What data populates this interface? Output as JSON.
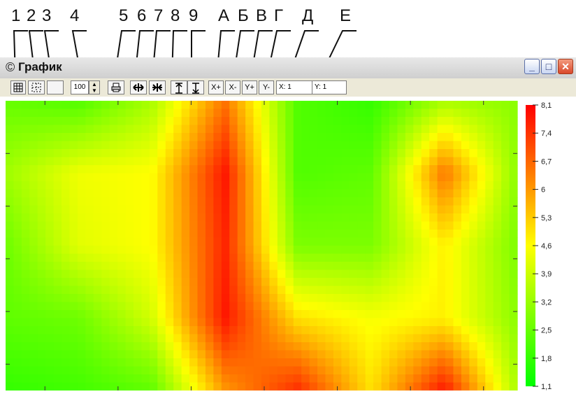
{
  "callouts": [
    "1",
    "2",
    "3",
    "4",
    "5",
    "6",
    "7",
    "8",
    "9",
    "А",
    "Б",
    "В",
    "Г",
    "Д",
    "Е"
  ],
  "window": {
    "title": "График",
    "icon": "copyright-icon",
    "controls": {
      "minimize": "_",
      "maximize": "□",
      "close": "✕"
    }
  },
  "toolbar": {
    "buttons": [
      {
        "id": "grid",
        "icon": "grid-icon"
      },
      {
        "id": "dotted-grid",
        "icon": "dotted-grid-icon"
      },
      {
        "id": "blank",
        "icon": "blank-button-icon"
      },
      {
        "id": "print",
        "icon": "printer-icon"
      },
      {
        "id": "stretch-horizontal",
        "icon": "horizontal-arrows-icon"
      },
      {
        "id": "compress-horizontal",
        "icon": "horizontal-compress-icon"
      },
      {
        "id": "stretch-vertical",
        "icon": "vertical-arrows-up-icon"
      },
      {
        "id": "compress-vertical",
        "icon": "vertical-arrows-down-icon"
      }
    ],
    "zoom_value": "100",
    "x_plus": "X+",
    "x_minus": "X-",
    "y_plus": "Y+",
    "y_minus": "Y-",
    "x_field": "X: 1",
    "y_field": "Y: 1"
  },
  "colors": {
    "low": "#00ff00",
    "high": "#ff0000",
    "mid": "#7f7f00",
    "window_bg": "#ece9d8",
    "close_button": "#d9482a"
  },
  "chart_data": {
    "type": "heatmap",
    "title": "",
    "xlabel": "",
    "ylabel": "",
    "colorbar": {
      "ticks": [
        "8,1",
        "7,4",
        "6,7",
        "6",
        "5,3",
        "4,6",
        "3,9",
        "3,2",
        "2,5",
        "1,8",
        "1,1"
      ],
      "min": 1.1,
      "max": 8.1,
      "colors": [
        "#00ff00",
        "#ff0000"
      ]
    },
    "x_ticks": 7,
    "y_ticks": 5,
    "grid": {
      "cols": 8,
      "rows": 5,
      "values": [
        [
          2.5,
          2.2,
          3.4,
          6.5,
          2.2,
          1.8,
          3.4,
          3.0
        ],
        [
          3.3,
          4.4,
          4.6,
          7.8,
          2.2,
          2.4,
          6.5,
          3.0
        ],
        [
          2.6,
          4.2,
          4.6,
          7.6,
          2.8,
          2.8,
          4.8,
          2.8
        ],
        [
          2.4,
          2.6,
          4.0,
          7.8,
          5.0,
          4.5,
          4.8,
          3.0
        ],
        [
          1.8,
          2.0,
          2.4,
          6.0,
          7.5,
          5.0,
          7.8,
          3.4
        ]
      ]
    }
  }
}
